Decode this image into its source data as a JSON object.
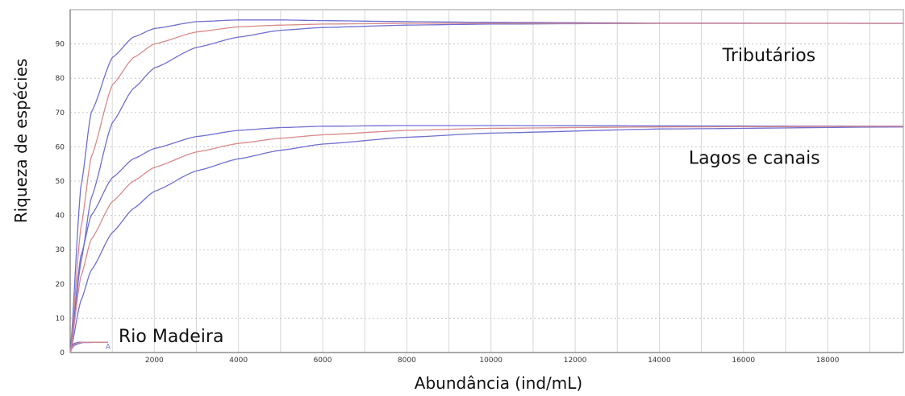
{
  "chart_data": {
    "type": "line",
    "title": "",
    "xlabel": "Abundância (ind/mL)",
    "ylabel": "Riqueza de espécies",
    "xlim": [
      0,
      19800
    ],
    "ylim": [
      0,
      100
    ],
    "x_ticks": [
      2000,
      4000,
      6000,
      8000,
      10000,
      12000,
      14000,
      16000,
      18000
    ],
    "y_ticks": [
      0,
      10,
      20,
      30,
      40,
      50,
      60,
      70,
      80,
      90
    ],
    "x_minor_step": 1000,
    "grid": true,
    "legend": "none",
    "colors": {
      "expected": "#d98a8a",
      "ci": "#6f6fd0"
    },
    "annotations": [
      {
        "text": "Tributários",
        "x": 15500,
        "y": 85
      },
      {
        "text": "Lagos e canais",
        "x": 14700,
        "y": 55
      },
      {
        "text": "Rio Madeira",
        "x": 1150,
        "y": 3
      }
    ],
    "marker": {
      "text": "A",
      "x": 900,
      "y": 2
    },
    "groups": [
      {
        "label_ref": "Tributários",
        "asymptote": 96,
        "expected": {
          "x": [
            0,
            250,
            500,
            1000,
            1500,
            2000,
            3000,
            4000,
            5000,
            6000,
            8000,
            10000,
            14000,
            19800
          ],
          "y": [
            0,
            36,
            57,
            78,
            86,
            90,
            93.5,
            95,
            95.5,
            95.8,
            96,
            96,
            96,
            96
          ]
        },
        "upper": {
          "x": [
            0,
            250,
            500,
            1000,
            1500,
            2000,
            3000,
            4000,
            5000,
            6000,
            8000,
            10000,
            14000,
            19800
          ],
          "y": [
            0,
            48,
            70,
            86,
            92,
            94.5,
            96.5,
            97,
            97,
            96.8,
            96.5,
            96.3,
            96.1,
            96
          ]
        },
        "lower": {
          "x": [
            0,
            250,
            500,
            1000,
            1500,
            2000,
            3000,
            4000,
            5000,
            6000,
            8000,
            10000,
            14000,
            19800
          ],
          "y": [
            0,
            26,
            45,
            67,
            77,
            83,
            89,
            92,
            94,
            94.8,
            95.5,
            95.8,
            96,
            96
          ]
        }
      },
      {
        "label_ref": "Lagos e canais",
        "asymptote": 66,
        "expected": {
          "x": [
            0,
            250,
            500,
            1000,
            1500,
            2000,
            3000,
            4000,
            5000,
            6000,
            8000,
            10000,
            14000,
            19800
          ],
          "y": [
            0,
            22,
            33,
            44,
            50,
            54,
            58.5,
            61,
            62.5,
            63.5,
            64.8,
            65.4,
            65.8,
            66
          ]
        },
        "upper": {
          "x": [
            0,
            250,
            500,
            1000,
            1500,
            2000,
            3000,
            4000,
            5000,
            6000,
            8000,
            10000,
            14000,
            19800
          ],
          "y": [
            0,
            28,
            40,
            51,
            56.5,
            59.5,
            63,
            64.8,
            65.6,
            66,
            66.2,
            66.2,
            66.1,
            66
          ]
        },
        "lower": {
          "x": [
            0,
            250,
            500,
            1000,
            1500,
            2000,
            3000,
            4000,
            5000,
            6000,
            8000,
            10000,
            14000,
            19800
          ],
          "y": [
            0,
            15,
            24,
            35,
            42,
            47,
            53,
            56.5,
            59,
            60.8,
            62.8,
            64,
            65.2,
            65.8
          ]
        }
      },
      {
        "label_ref": "Rio Madeira",
        "asymptote": 3,
        "expected": {
          "x": [
            0,
            50,
            100,
            200,
            300,
            900
          ],
          "y": [
            0,
            1.8,
            2.4,
            2.8,
            3,
            3
          ]
        },
        "upper": {
          "x": [
            0,
            50,
            100,
            200,
            300,
            900
          ],
          "y": [
            0,
            2.2,
            2.7,
            3,
            3,
            3
          ]
        },
        "lower": {
          "x": [
            0,
            50,
            100,
            200,
            300,
            900
          ],
          "y": [
            0,
            1.4,
            2.1,
            2.6,
            2.9,
            3
          ]
        }
      }
    ]
  }
}
